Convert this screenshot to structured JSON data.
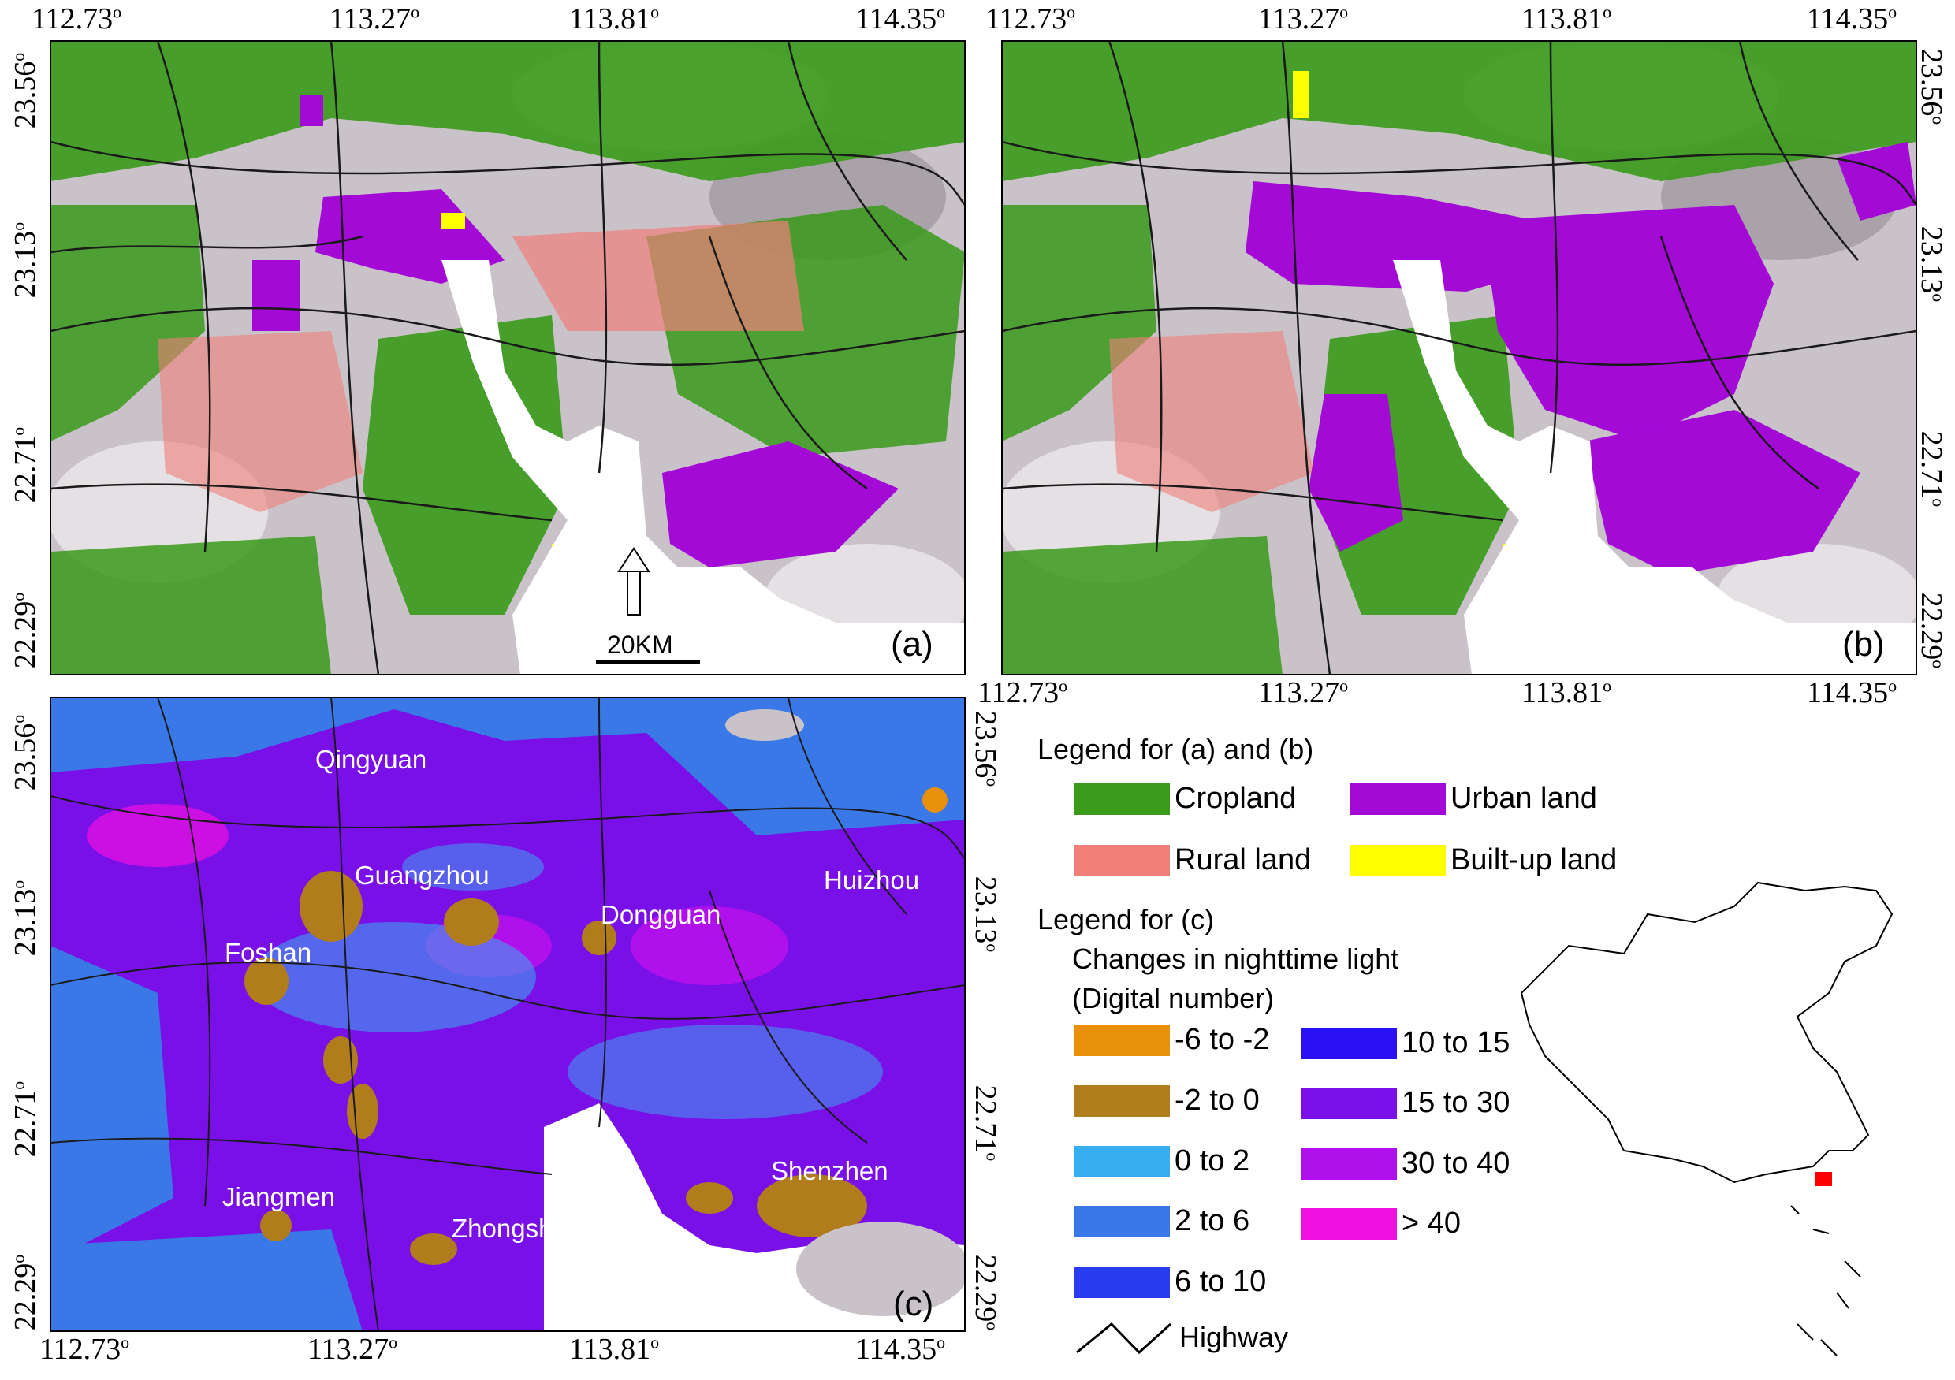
{
  "panels": {
    "a": {
      "label": "(a)"
    },
    "b": {
      "label": "(b)"
    },
    "c": {
      "label": "(c)"
    }
  },
  "axes": {
    "longitude_ticks": [
      "112.73",
      "113.27",
      "113.81",
      "114.35"
    ],
    "latitude_ticks": [
      "23.56",
      "23.13",
      "22.71",
      "22.29"
    ],
    "degree_symbol": "o"
  },
  "scale_bar": {
    "label": "20KM"
  },
  "north_arrow": {
    "icon": "north-arrow-icon"
  },
  "cities": [
    "Qingyuan",
    "Guangzhou",
    "Huizhou",
    "Dongguan",
    "Foshan",
    "Shenzhen",
    "Jiangmen",
    "Zhongshan"
  ],
  "city_labels_visible": {
    "Qingyuan": "Qingyuan",
    "Guangzhou": "Guangzhou",
    "Huizhou": "Huizhou",
    "Dongguan": "Dongguan",
    "Foshan": "Foshan",
    "Shenzhen": "Shenzhen",
    "Jiangmen": "Jiangmen",
    "Zhongshan": "Zhongsh"
  },
  "legend_ab": {
    "title": "Legend for (a) and (b)",
    "items": [
      {
        "label": "Cropland",
        "color": "#3a9a1a"
      },
      {
        "label": "Urban land",
        "color": "#a30ad6"
      },
      {
        "label": "Rural land",
        "color": "#f07f7a"
      },
      {
        "label": "Built-up land",
        "color": "#ffff00"
      }
    ]
  },
  "legend_c": {
    "title": "Legend for (c)",
    "subtitle_line1": "Changes in nighttime light",
    "subtitle_line2": "(Digital number)",
    "items": [
      {
        "label": "-6 to -2",
        "color": "#e8900a"
      },
      {
        "label": "-2 to 0",
        "color": "#b07c1c"
      },
      {
        "label": "0 to 2",
        "color": "#36aef0"
      },
      {
        "label": "2 to 6",
        "color": "#3a78e8"
      },
      {
        "label": "6 to 10",
        "color": "#2a3cf0"
      },
      {
        "label": "10 to 15",
        "color": "#2a10f5"
      },
      {
        "label": "15 to 30",
        "color": "#7a10e8"
      },
      {
        "label": "30 to 40",
        "color": "#b010ec"
      },
      {
        "label": "> 40",
        "color": "#f010e0"
      }
    ],
    "highway_label": "Highway"
  },
  "colors": {
    "water": "#ffffff",
    "terrain": "#c9c3c9",
    "highway": "#1a1a1a",
    "china_marker": "#ff0000"
  }
}
